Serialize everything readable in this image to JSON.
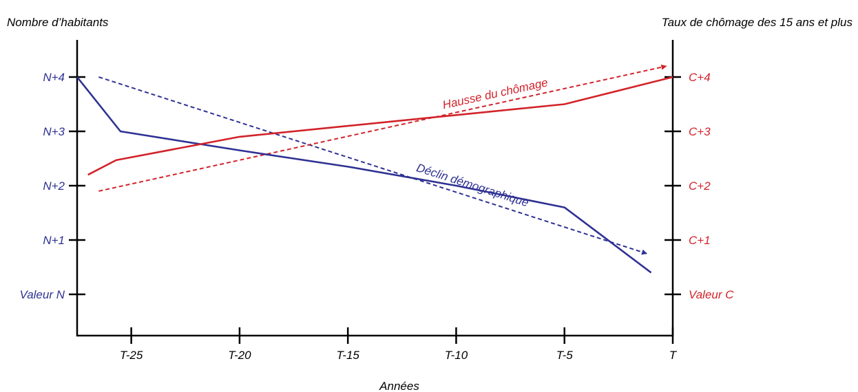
{
  "chart_data": {
    "type": "line",
    "left_axis_title": "Nombre d’habitants",
    "right_axis_title": "Taux de chômage des 15 ans et plus",
    "xlabel": "Années",
    "x_ticks": [
      "T-25",
      "T-20",
      "T-15",
      "T-10",
      "T-5",
      "T"
    ],
    "left_ticks": [
      "Valeur N",
      "N+1",
      "N+2",
      "N+3",
      "N+4"
    ],
    "right_ticks": [
      "Valeur C",
      "C+1",
      "C+2",
      "C+3",
      "C+4"
    ],
    "x_range": [
      -27.5,
      0
    ],
    "y_range": [
      -1,
      5
    ],
    "series": [
      {
        "axis": "left",
        "color": "#2e3192",
        "x": [
          -27.5,
          -25.5,
          -20,
          -15,
          -10,
          -5,
          -1
        ],
        "y": [
          4,
          3,
          2.65,
          2.35,
          2.0,
          1.6,
          0.4
        ]
      },
      {
        "axis": "right",
        "color": "#d2232a",
        "x": [
          -27,
          -25.7,
          -20,
          -15,
          -10,
          -5,
          0
        ],
        "y": [
          2.2,
          2.47,
          2.9,
          3.1,
          3.3,
          3.5,
          4.0
        ]
      }
    ],
    "trends": [
      {
        "label": "Déclin démographique",
        "color": "#2e3192",
        "from": [
          -26.5,
          4.0
        ],
        "to": [
          -1.2,
          0.75
        ]
      },
      {
        "label": "Hausse du chômage",
        "color": "#d2232a",
        "from": [
          -26.5,
          1.9
        ],
        "to": [
          -0.3,
          4.2
        ]
      }
    ]
  }
}
